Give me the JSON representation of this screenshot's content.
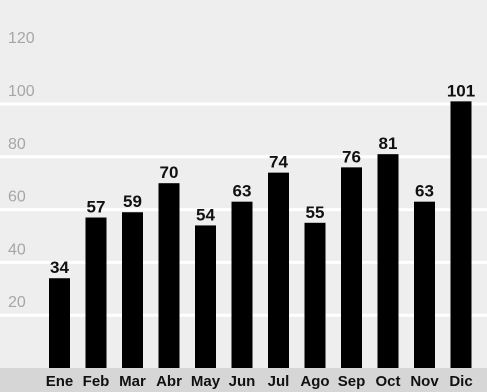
{
  "chart_data": {
    "type": "bar",
    "categories": [
      "Ene",
      "Feb",
      "Mar",
      "Abr",
      "May",
      "Jun",
      "Jul",
      "Ago",
      "Sep",
      "Oct",
      "Nov",
      "Dic"
    ],
    "values": [
      34,
      57,
      59,
      70,
      54,
      63,
      74,
      55,
      76,
      81,
      63,
      101
    ],
    "y_ticks": [
      20,
      40,
      60,
      80,
      100,
      120
    ],
    "ylim": [
      0,
      120
    ],
    "grid": true,
    "title": "",
    "xlabel": "",
    "ylabel": "",
    "colors": {
      "background": "#eeeeee",
      "gridline": "#ffffff",
      "bar": "#000000",
      "tick_text": "#a6a6a6",
      "category_strip": "#d6d6d6"
    }
  }
}
